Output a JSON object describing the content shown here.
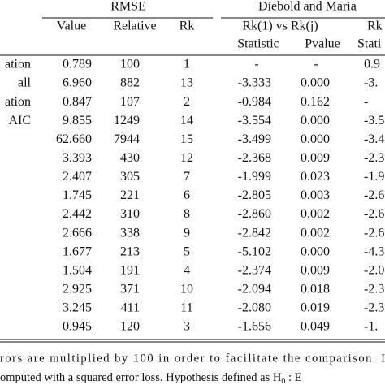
{
  "table": {
    "groups": [
      "RMSE",
      "Diebold and Maria"
    ],
    "header_row_1": [
      "Value",
      "Relative",
      "Rk",
      "Rk(1) vs Rk(j)",
      "Rk"
    ],
    "header_row_2": [
      "Statistic",
      "Pvalue",
      "Stati"
    ],
    "rows": [
      [
        "ation",
        "0.789",
        "100",
        "1",
        "-",
        "-",
        "0.9"
      ],
      [
        "all",
        "6.960",
        "882",
        "13",
        "-3.333",
        "0.000",
        "-3."
      ],
      [
        "ation",
        "0.847",
        "107",
        "2",
        "-0.984",
        "0.162",
        "-"
      ],
      [
        "AIC",
        "9.855",
        "1249",
        "14",
        "-3.554",
        "0.000",
        "-3.5"
      ],
      [
        null,
        "62.660",
        "7944",
        "15",
        "-3.499",
        "0.000",
        "-3.4"
      ],
      [
        null,
        "3.393",
        "430",
        "12",
        "-2.368",
        "0.009",
        "-2.3"
      ],
      [
        null,
        "2.407",
        "305",
        "7",
        "-1.999",
        "0.023",
        "-1.9"
      ],
      [
        null,
        "1.745",
        "221",
        "6",
        "-2.805",
        "0.003",
        "-2.6"
      ],
      [
        null,
        "2.442",
        "310",
        "8",
        "-2.860",
        "0.002",
        "-2.6"
      ],
      [
        null,
        "2.666",
        "338",
        "9",
        "-2.842",
        "0.002",
        "-2.6"
      ],
      [
        null,
        "1.677",
        "213",
        "5",
        "-5.102",
        "0.000",
        "-4.3"
      ],
      [
        null,
        "1.504",
        "191",
        "4",
        "-2.374",
        "0.009",
        "-2.0"
      ],
      [
        null,
        "2.925",
        "371",
        "10",
        "-2.094",
        "0.018",
        "-2.3"
      ],
      [
        null,
        "3.245",
        "411",
        "11",
        "-2.080",
        "0.019",
        "-2.3"
      ],
      [
        null,
        "0.945",
        "120",
        "3",
        "-1.656",
        "0.049",
        "-1."
      ]
    ],
    "footnote_1": "rors are multiplied by 100 in order to facilitate the comparison. I",
    "footnote_2": [
      "omputed with a squared error loss. Hypothesis defined as H",
      "0",
      " : E"
    ]
  }
}
